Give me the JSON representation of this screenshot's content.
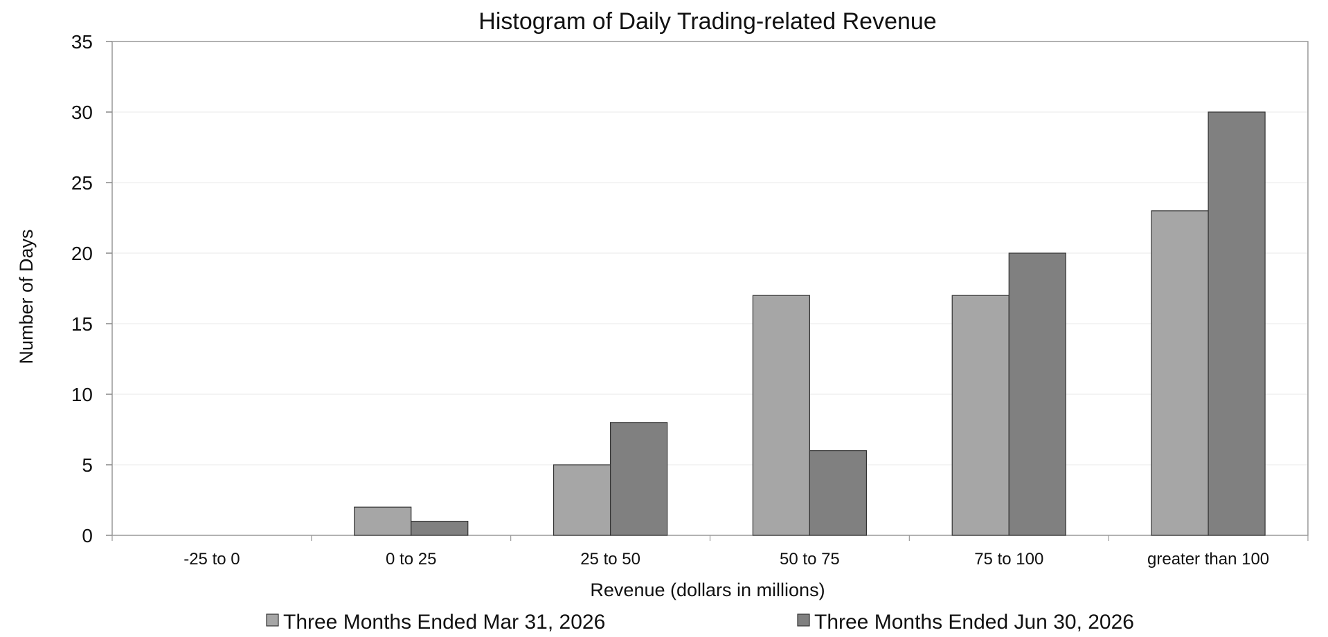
{
  "chart_data": {
    "type": "bar",
    "title": "Histogram of Daily Trading-related Revenue",
    "xlabel": "Revenue (dollars in millions)",
    "ylabel": "Number of Days",
    "categories": [
      "-25 to 0",
      "0 to 25",
      "25 to 50",
      "50 to 75",
      "75 to 100",
      "greater than 100"
    ],
    "series": [
      {
        "name": "Three Months Ended Mar 31, 2026",
        "color": "#a6a6a6",
        "values": [
          0,
          2,
          5,
          17,
          17,
          23
        ]
      },
      {
        "name": "Three Months Ended Jun 30, 2026",
        "color": "#808080",
        "values": [
          0,
          1,
          8,
          6,
          20,
          30
        ]
      }
    ],
    "ylim": [
      0,
      35
    ],
    "yticks": [
      0,
      5,
      10,
      15,
      20,
      25,
      30,
      35
    ],
    "grid": true,
    "legend": "bottom"
  }
}
